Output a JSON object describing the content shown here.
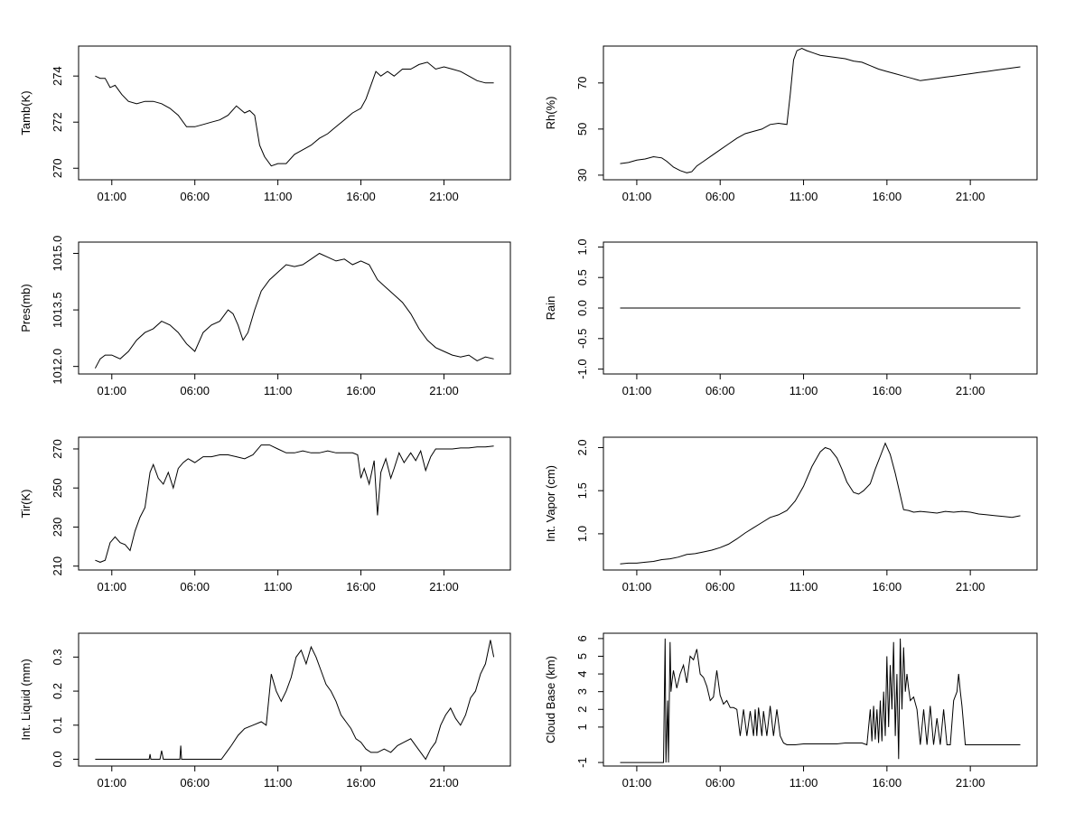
{
  "chart_data": [
    {
      "type": "line",
      "id": "tamb",
      "ylabel": "Tamb(K)",
      "x_ticks": [
        "01:00",
        "06:00",
        "11:00",
        "16:00",
        "21:00"
      ],
      "y_ticks": [
        "270",
        "272",
        "274"
      ],
      "xlim": [
        0,
        24
      ],
      "ylim": [
        269.5,
        275.3
      ],
      "x": [
        0.0,
        0.3,
        0.6,
        0.9,
        1.2,
        1.6,
        2.0,
        2.5,
        3.0,
        3.5,
        4.0,
        4.5,
        5.0,
        5.5,
        6.0,
        6.5,
        7.0,
        7.5,
        8.0,
        8.5,
        9.0,
        9.3,
        9.6,
        9.9,
        10.2,
        10.6,
        11.0,
        11.5,
        12.0,
        12.5,
        13.0,
        13.5,
        14.0,
        14.5,
        15.0,
        15.5,
        16.0,
        16.3,
        16.6,
        16.9,
        17.2,
        17.6,
        18.0,
        18.5,
        19.0,
        19.5,
        20.0,
        20.5,
        21.0,
        21.5,
        22.0,
        22.5,
        23.0,
        23.5,
        24.0
      ],
      "y": [
        274.0,
        273.9,
        273.9,
        273.5,
        273.6,
        273.2,
        272.9,
        272.8,
        272.9,
        272.9,
        272.8,
        272.6,
        272.3,
        271.8,
        271.8,
        271.9,
        272.0,
        272.1,
        272.3,
        272.7,
        272.4,
        272.5,
        272.3,
        271.0,
        270.5,
        270.1,
        270.2,
        270.2,
        270.6,
        270.8,
        271.0,
        271.3,
        271.5,
        271.8,
        272.1,
        272.4,
        272.6,
        273.0,
        273.6,
        274.2,
        274.0,
        274.2,
        274.0,
        274.3,
        274.3,
        274.5,
        274.6,
        274.3,
        274.4,
        274.3,
        274.2,
        274.0,
        273.8,
        273.7,
        273.7
      ]
    },
    {
      "type": "line",
      "id": "rh",
      "ylabel": "Rh(%)",
      "x_ticks": [
        "01:00",
        "06:00",
        "11:00",
        "16:00",
        "21:00"
      ],
      "y_ticks": [
        "30",
        "50",
        "70"
      ],
      "xlim": [
        0,
        24
      ],
      "ylim": [
        28,
        86
      ],
      "x": [
        0.0,
        0.5,
        1.0,
        1.5,
        2.0,
        2.5,
        2.8,
        3.2,
        3.6,
        4.0,
        4.3,
        4.6,
        5.0,
        5.5,
        6.0,
        6.5,
        7.0,
        7.5,
        8.0,
        8.5,
        9.0,
        9.5,
        10.0,
        10.2,
        10.4,
        10.6,
        10.9,
        11.2,
        11.6,
        12.0,
        12.5,
        13.0,
        13.5,
        14.0,
        14.5,
        15.0,
        15.5,
        16.0,
        16.5,
        17.0,
        17.5,
        18.0,
        18.5,
        19.0,
        19.5,
        20.0,
        20.5,
        21.0,
        21.5,
        22.0,
        22.5,
        23.0,
        23.5,
        24.0
      ],
      "y": [
        35,
        35.5,
        36.5,
        37,
        38,
        37.5,
        36,
        33.5,
        32,
        31,
        31.5,
        34,
        36,
        38.5,
        41,
        43.5,
        46,
        48,
        49,
        50,
        52,
        52.5,
        52,
        65,
        80,
        84,
        85,
        84,
        83,
        82,
        81.5,
        81,
        80.5,
        79.5,
        79,
        77.5,
        76,
        75,
        74,
        73,
        72,
        71,
        71.5,
        72,
        72.5,
        73,
        73.5,
        74,
        74.5,
        75,
        75.5,
        76,
        76.5,
        77
      ]
    },
    {
      "type": "line",
      "id": "pres",
      "ylabel": "Pres(mb)",
      "x_ticks": [
        "01:00",
        "06:00",
        "11:00",
        "16:00",
        "21:00"
      ],
      "y_ticks": [
        "1012.0",
        "1013.5",
        "1015.0"
      ],
      "xlim": [
        0,
        24
      ],
      "ylim": [
        1011.8,
        1015.3
      ],
      "x": [
        0.0,
        0.3,
        0.6,
        1.0,
        1.5,
        2.0,
        2.5,
        3.0,
        3.5,
        4.0,
        4.5,
        5.0,
        5.5,
        6.0,
        6.5,
        7.0,
        7.5,
        8.0,
        8.3,
        8.6,
        8.9,
        9.2,
        9.6,
        10.0,
        10.5,
        11.0,
        11.5,
        12.0,
        12.5,
        13.0,
        13.5,
        14.0,
        14.5,
        15.0,
        15.5,
        16.0,
        16.5,
        17.0,
        17.5,
        18.0,
        18.5,
        19.0,
        19.5,
        20.0,
        20.5,
        21.0,
        21.5,
        22.0,
        22.5,
        23.0,
        23.5,
        24.0
      ],
      "y": [
        1011.95,
        1012.2,
        1012.3,
        1012.3,
        1012.2,
        1012.4,
        1012.7,
        1012.9,
        1013.0,
        1013.2,
        1013.1,
        1012.9,
        1012.6,
        1012.4,
        1012.9,
        1013.1,
        1013.2,
        1013.5,
        1013.4,
        1013.1,
        1012.7,
        1012.9,
        1013.5,
        1014.0,
        1014.3,
        1014.5,
        1014.7,
        1014.65,
        1014.7,
        1014.85,
        1015.0,
        1014.9,
        1014.8,
        1014.85,
        1014.7,
        1014.8,
        1014.7,
        1014.3,
        1014.1,
        1013.9,
        1013.7,
        1013.4,
        1013.0,
        1012.7,
        1012.5,
        1012.4,
        1012.3,
        1012.25,
        1012.3,
        1012.15,
        1012.25,
        1012.2
      ]
    },
    {
      "type": "line",
      "id": "rain",
      "ylabel": "Rain",
      "x_ticks": [
        "01:00",
        "06:00",
        "11:00",
        "16:00",
        "21:00"
      ],
      "y_ticks": [
        "-1.0",
        "-0.5",
        "0.0",
        "0.5",
        "1.0"
      ],
      "xlim": [
        0,
        24
      ],
      "ylim": [
        -1.08,
        1.08
      ],
      "x": [
        0.0,
        24.0
      ],
      "y": [
        0.0,
        0.0
      ]
    },
    {
      "type": "line",
      "id": "tir",
      "ylabel": "Tir(K)",
      "x_ticks": [
        "01:00",
        "06:00",
        "11:00",
        "16:00",
        "21:00"
      ],
      "y_ticks": [
        "210",
        "230",
        "250",
        "270"
      ],
      "xlim": [
        0,
        24
      ],
      "ylim": [
        208,
        276
      ],
      "x": [
        0.0,
        0.3,
        0.6,
        0.9,
        1.2,
        1.5,
        1.8,
        2.1,
        2.4,
        2.7,
        3.0,
        3.3,
        3.5,
        3.8,
        4.1,
        4.4,
        4.7,
        5.0,
        5.3,
        5.6,
        6.0,
        6.5,
        7.0,
        7.5,
        8.0,
        8.5,
        9.0,
        9.5,
        10.0,
        10.5,
        11.0,
        11.5,
        12.0,
        12.5,
        13.0,
        13.5,
        14.0,
        14.5,
        15.0,
        15.5,
        15.8,
        16.0,
        16.2,
        16.5,
        16.8,
        17.0,
        17.2,
        17.5,
        17.8,
        18.0,
        18.3,
        18.6,
        19.0,
        19.3,
        19.6,
        19.9,
        20.2,
        20.5,
        21.0,
        21.5,
        22.0,
        22.5,
        23.0,
        23.5,
        24.0
      ],
      "y": [
        213,
        212,
        213,
        222,
        225,
        222,
        221,
        218,
        228,
        235,
        240,
        258,
        262,
        255,
        252,
        258,
        250,
        260,
        263,
        265,
        263,
        266,
        266,
        267,
        267,
        266,
        265,
        267,
        272,
        272,
        270,
        268,
        268,
        269,
        268,
        268,
        269,
        268,
        268,
        268,
        267,
        255,
        260,
        252,
        264,
        236,
        258,
        265,
        255,
        260,
        268,
        263,
        268,
        264,
        269,
        259,
        266,
        270,
        270,
        270,
        270.5,
        270.5,
        271,
        271,
        271.5
      ]
    },
    {
      "type": "line",
      "id": "vapor",
      "ylabel": "Int. Vapor (cm)",
      "x_ticks": [
        "01:00",
        "06:00",
        "11:00",
        "16:00",
        "21:00"
      ],
      "y_ticks": [
        "1.0",
        "1.5",
        "2.0"
      ],
      "xlim": [
        0,
        24
      ],
      "ylim": [
        0.58,
        2.12
      ],
      "x": [
        0.0,
        0.5,
        1.0,
        1.5,
        2.0,
        2.5,
        3.0,
        3.5,
        4.0,
        4.5,
        5.0,
        5.5,
        6.0,
        6.5,
        7.0,
        7.5,
        8.0,
        8.5,
        9.0,
        9.5,
        10.0,
        10.5,
        11.0,
        11.5,
        12.0,
        12.3,
        12.6,
        13.0,
        13.3,
        13.6,
        14.0,
        14.3,
        14.6,
        15.0,
        15.3,
        15.6,
        15.9,
        16.2,
        16.5,
        16.8,
        17.0,
        17.3,
        17.6,
        18.0,
        18.5,
        19.0,
        19.5,
        20.0,
        20.5,
        21.0,
        21.5,
        22.0,
        22.5,
        23.0,
        23.5,
        24.0
      ],
      "y": [
        0.65,
        0.66,
        0.66,
        0.67,
        0.68,
        0.7,
        0.71,
        0.73,
        0.76,
        0.77,
        0.79,
        0.81,
        0.84,
        0.88,
        0.94,
        1.01,
        1.07,
        1.13,
        1.19,
        1.22,
        1.27,
        1.38,
        1.55,
        1.78,
        1.95,
        2.0,
        1.98,
        1.88,
        1.75,
        1.6,
        1.48,
        1.46,
        1.5,
        1.58,
        1.75,
        1.9,
        2.05,
        1.92,
        1.7,
        1.45,
        1.28,
        1.27,
        1.25,
        1.26,
        1.25,
        1.24,
        1.26,
        1.25,
        1.26,
        1.25,
        1.23,
        1.22,
        1.21,
        1.2,
        1.19,
        1.21
      ]
    },
    {
      "type": "line",
      "id": "liquid",
      "ylabel": "Int. Liquid (mm)",
      "x_ticks": [
        "01:00",
        "06:00",
        "11:00",
        "16:00",
        "21:00"
      ],
      "y_ticks": [
        "0.0",
        "0.1",
        "0.2",
        "0.3"
      ],
      "xlim": [
        0,
        24
      ],
      "ylim": [
        -0.02,
        0.37
      ],
      "x": [
        0.0,
        3.25,
        3.3,
        3.35,
        3.9,
        4.0,
        4.1,
        5.1,
        5.15,
        5.2,
        7.6,
        7.9,
        8.2,
        8.6,
        9.0,
        9.5,
        10.0,
        10.3,
        10.6,
        10.9,
        11.2,
        11.5,
        11.8,
        12.1,
        12.4,
        12.7,
        13.0,
        13.3,
        13.6,
        13.9,
        14.2,
        14.5,
        14.8,
        15.1,
        15.4,
        15.7,
        16.0,
        16.3,
        16.6,
        17.0,
        17.4,
        17.8,
        18.2,
        18.6,
        19.0,
        19.3,
        19.6,
        19.9,
        20.2,
        20.5,
        20.8,
        21.1,
        21.4,
        21.7,
        22.0,
        22.3,
        22.6,
        22.9,
        23.2,
        23.5,
        23.8,
        24.0
      ],
      "y": [
        0.0,
        0.0,
        0.015,
        0.0,
        0.0,
        0.025,
        0.0,
        0.0,
        0.04,
        0.0,
        0.0,
        0.02,
        0.04,
        0.07,
        0.09,
        0.1,
        0.11,
        0.1,
        0.25,
        0.2,
        0.17,
        0.2,
        0.24,
        0.3,
        0.32,
        0.28,
        0.33,
        0.3,
        0.26,
        0.22,
        0.2,
        0.17,
        0.13,
        0.11,
        0.09,
        0.06,
        0.05,
        0.03,
        0.02,
        0.02,
        0.03,
        0.02,
        0.04,
        0.05,
        0.06,
        0.04,
        0.02,
        0.0,
        0.03,
        0.05,
        0.1,
        0.13,
        0.15,
        0.12,
        0.1,
        0.13,
        0.18,
        0.2,
        0.25,
        0.28,
        0.35,
        0.3
      ]
    },
    {
      "type": "line",
      "id": "cloudbase",
      "ylabel": "Cloud Base (km)",
      "x_ticks": [
        "01:00",
        "06:00",
        "11:00",
        "16:00",
        "21:00"
      ],
      "y_ticks": [
        "-1",
        "1",
        "2",
        "3",
        "4",
        "5",
        "6"
      ],
      "xlim": [
        0,
        24
      ],
      "ylim": [
        -1.2,
        6.3
      ],
      "x": [
        0.0,
        2.6,
        2.7,
        2.75,
        2.85,
        2.9,
        3.0,
        3.05,
        3.1,
        3.2,
        3.4,
        3.6,
        3.8,
        4.0,
        4.2,
        4.4,
        4.6,
        4.8,
        5.0,
        5.2,
        5.4,
        5.6,
        5.8,
        6.0,
        6.2,
        6.4,
        6.6,
        6.8,
        7.0,
        7.2,
        7.4,
        7.6,
        7.8,
        8.0,
        8.1,
        8.2,
        8.3,
        8.5,
        8.6,
        8.8,
        9.0,
        9.2,
        9.4,
        9.6,
        9.8,
        10.0,
        10.2,
        10.5,
        11.0,
        11.5,
        12.0,
        12.5,
        13.0,
        13.5,
        14.0,
        14.5,
        14.8,
        15.0,
        15.1,
        15.2,
        15.3,
        15.4,
        15.5,
        15.6,
        15.7,
        15.8,
        15.9,
        16.0,
        16.1,
        16.2,
        16.3,
        16.4,
        16.5,
        16.6,
        16.7,
        16.8,
        16.9,
        17.0,
        17.1,
        17.2,
        17.3,
        17.4,
        17.6,
        17.8,
        18.0,
        18.2,
        18.4,
        18.6,
        18.8,
        19.0,
        19.2,
        19.4,
        19.6,
        19.8,
        20.0,
        20.2,
        20.3,
        20.4,
        20.5,
        20.7,
        21.0,
        21.5,
        22.0,
        22.5,
        23.0,
        23.5,
        24.0
      ],
      "y": [
        -1.0,
        -1.0,
        6.0,
        -1.0,
        2.5,
        -1.0,
        5.8,
        3.0,
        3.5,
        4.2,
        3.2,
        4.0,
        4.5,
        3.5,
        5.0,
        4.8,
        5.4,
        4.0,
        3.8,
        3.3,
        2.5,
        2.7,
        4.2,
        2.8,
        2.3,
        2.5,
        2.1,
        2.1,
        2.0,
        0.5,
        2.0,
        0.5,
        1.9,
        0.5,
        2.0,
        0.5,
        2.1,
        0.5,
        1.9,
        0.5,
        2.2,
        0.5,
        2.0,
        0.5,
        0.1,
        0.0,
        0.0,
        0.0,
        0.05,
        0.05,
        0.05,
        0.05,
        0.05,
        0.1,
        0.1,
        0.1,
        0.0,
        2.0,
        0.2,
        2.2,
        0.3,
        2.0,
        0.1,
        2.5,
        0.2,
        3.0,
        0.5,
        5.0,
        1.0,
        4.5,
        2.0,
        5.8,
        0.5,
        4.0,
        -0.8,
        6.0,
        2.0,
        5.5,
        3.0,
        4.0,
        3.2,
        2.5,
        2.7,
        2.0,
        0.0,
        2.0,
        0.0,
        2.2,
        0.0,
        1.5,
        0.0,
        2.0,
        0.0,
        0.0,
        2.5,
        3.0,
        4.0,
        3.0,
        2.2,
        0.0,
        0.0,
        0.0,
        0.0,
        0.0,
        0.0,
        0.0,
        0.0
      ]
    }
  ]
}
